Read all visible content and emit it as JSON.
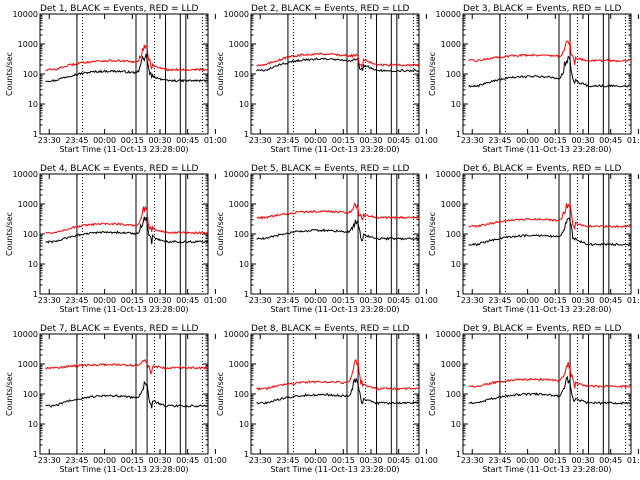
{
  "figure": {
    "xlabel": "Start Time (11-Oct-13 23:28:00)",
    "ylabel": "Counts/sec",
    "x_ticks": [
      "23:30",
      "23:45",
      "00:00",
      "00:15",
      "00:30",
      "00:45",
      "01:00"
    ],
    "y_ticks": [
      "1",
      "10",
      "100",
      "1000",
      "10000"
    ],
    "colors": {
      "events": "#000000",
      "lld": "#ff0000",
      "background": "#ffffff"
    }
  },
  "chart_data": [
    {
      "type": "line",
      "title": "Det 1, BLACK = Events, RED = LLD",
      "yscale": "log",
      "ylim": [
        1,
        10000
      ],
      "xlim_minutes": [
        -3,
        88
      ],
      "series": [
        {
          "color": "#000000",
          "base": 60,
          "amp": 1.2,
          "flare": 3
        },
        {
          "color": "#ff0000",
          "base": 140,
          "amp": 1.1,
          "flare": 3
        }
      ]
    },
    {
      "type": "line",
      "title": "Det 2, BLACK = Events, RED = LLD",
      "yscale": "log",
      "ylim": [
        1,
        10000
      ],
      "xlim_minutes": [
        -3,
        88
      ],
      "series": [
        {
          "color": "#000000",
          "base": 130,
          "amp": 1.6,
          "flare": 0.3
        },
        {
          "color": "#ff0000",
          "base": 200,
          "amp": 1.5,
          "flare": 0.3
        }
      ]
    },
    {
      "type": "line",
      "title": "Det 3, BLACK = Events, RED = LLD",
      "yscale": "log",
      "ylim": [
        1,
        10000
      ],
      "xlim_minutes": [
        -3,
        88
      ],
      "series": [
        {
          "color": "#000000",
          "base": 40,
          "amp": 1.2,
          "flare": 4
        },
        {
          "color": "#ff0000",
          "base": 280,
          "amp": 0.6,
          "flare": 2
        }
      ]
    },
    {
      "type": "line",
      "title": "Det 4, BLACK = Events, RED = LLD",
      "yscale": "log",
      "ylim": [
        1,
        10000
      ],
      "xlim_minutes": [
        -3,
        88
      ],
      "series": [
        {
          "color": "#000000",
          "base": 55,
          "amp": 1.2,
          "flare": 3
        },
        {
          "color": "#ff0000",
          "base": 110,
          "amp": 1.1,
          "flare": 3
        }
      ]
    },
    {
      "type": "line",
      "title": "Det 5, BLACK = Events, RED = LLD",
      "yscale": "log",
      "ylim": [
        1,
        10000
      ],
      "xlim_minutes": [
        -3,
        88
      ],
      "series": [
        {
          "color": "#000000",
          "base": 70,
          "amp": 1.0,
          "flare": 1.2
        },
        {
          "color": "#ff0000",
          "base": 350,
          "amp": 0.7,
          "flare": 1
        }
      ]
    },
    {
      "type": "line",
      "title": "Det 6, BLACK = Events, RED = LLD",
      "yscale": "log",
      "ylim": [
        1,
        10000
      ],
      "xlim_minutes": [
        -3,
        88
      ],
      "series": [
        {
          "color": "#000000",
          "base": 45,
          "amp": 1.1,
          "flare": 3.5
        },
        {
          "color": "#ff0000",
          "base": 180,
          "amp": 0.8,
          "flare": 3
        }
      ]
    },
    {
      "type": "line",
      "title": "Det 7, BLACK = Events, RED = LLD",
      "yscale": "log",
      "ylim": [
        1,
        10000
      ],
      "xlim_minutes": [
        -3,
        88
      ],
      "series": [
        {
          "color": "#000000",
          "base": 40,
          "amp": 1.3,
          "flare": 2
        },
        {
          "color": "#ff0000",
          "base": 750,
          "amp": 0.3,
          "flare": 0.5
        }
      ]
    },
    {
      "type": "line",
      "title": "Det 8, BLACK = Events, RED = LLD",
      "yscale": "log",
      "ylim": [
        1,
        10000
      ],
      "xlim_minutes": [
        -3,
        88
      ],
      "series": [
        {
          "color": "#000000",
          "base": 50,
          "amp": 1.0,
          "flare": 2.5
        },
        {
          "color": "#ff0000",
          "base": 150,
          "amp": 0.8,
          "flare": 4
        }
      ]
    },
    {
      "type": "line",
      "title": "Det 9, BLACK = Events, RED = LLD",
      "yscale": "log",
      "ylim": [
        1,
        10000
      ],
      "xlim_minutes": [
        -3,
        88
      ],
      "series": [
        {
          "color": "#000000",
          "base": 50,
          "amp": 1.1,
          "flare": 3
        },
        {
          "color": "#ff0000",
          "base": 180,
          "amp": 0.8,
          "flare": 2.5
        }
      ]
    }
  ]
}
